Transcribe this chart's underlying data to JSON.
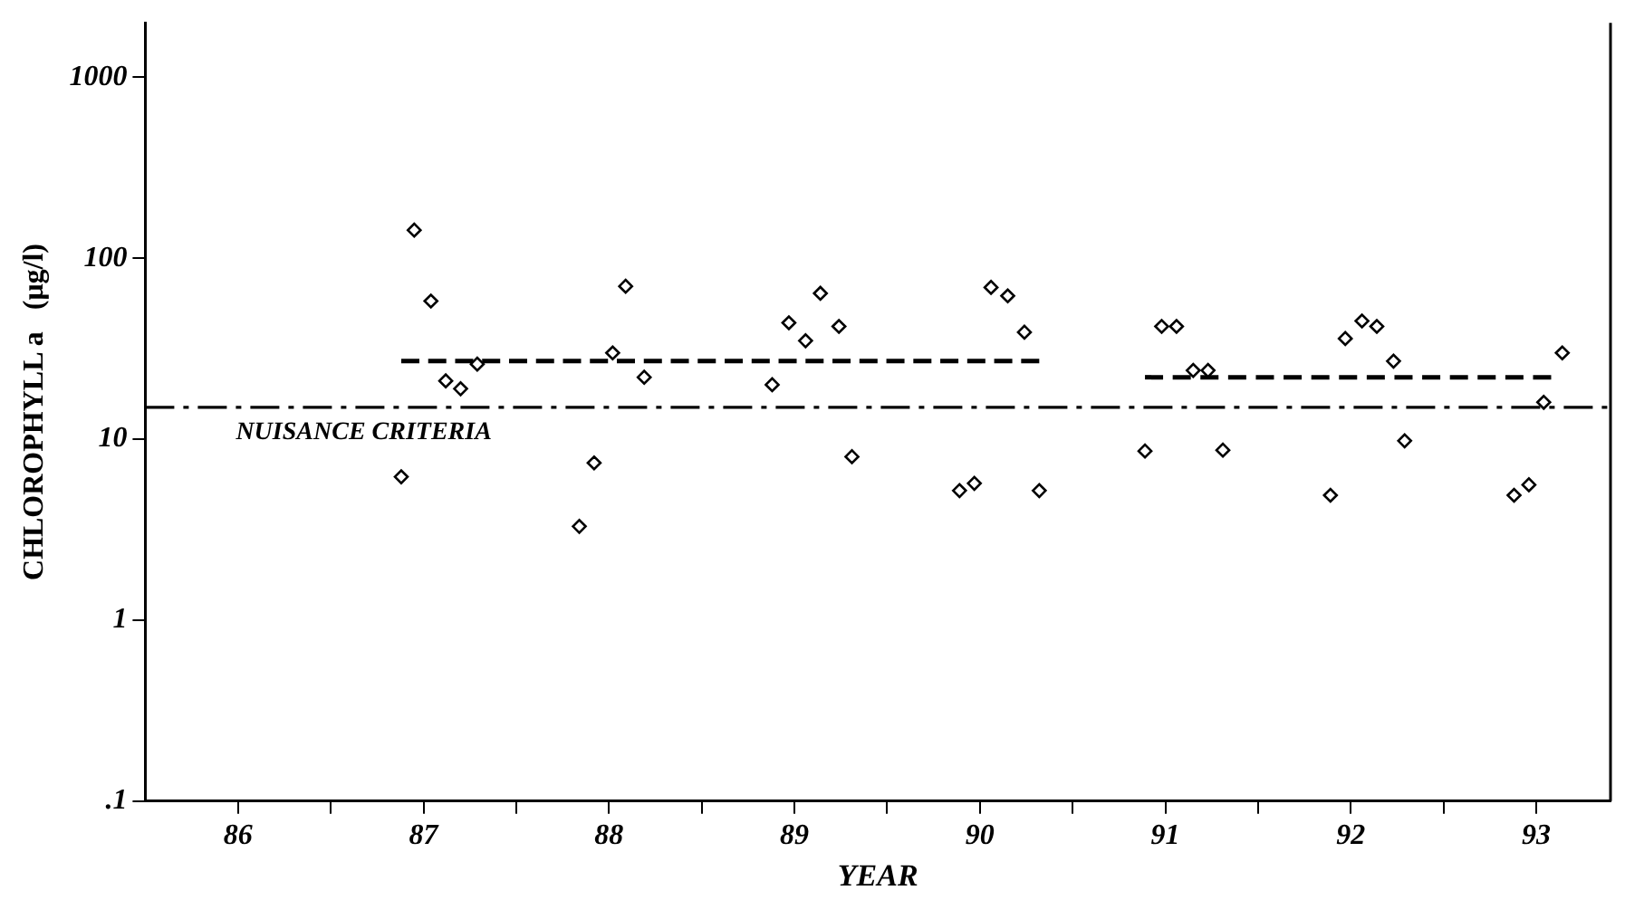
{
  "chart_data": {
    "type": "scatter",
    "xlabel": "YEAR",
    "ylabel": "CHLOROPHYLL a   (μg/l)",
    "log": "y",
    "grid": false,
    "legend": false,
    "marker": "diamond",
    "xlim": [
      85.5,
      93.4
    ],
    "ylim": [
      0.1,
      2000
    ],
    "xticks": [
      86,
      {
        "value": 86.5,
        "label": null
      },
      87,
      {
        "value": 87.5,
        "label": null
      },
      88,
      {
        "value": 88.5,
        "label": null
      },
      89,
      {
        "value": 89.5,
        "label": null
      },
      90,
      {
        "value": 90.5,
        "label": null
      },
      91,
      {
        "value": 91.5,
        "label": null
      },
      92,
      {
        "value": 92.5,
        "label": null
      },
      93
    ],
    "yticks": [
      {
        "value": 0.1,
        "label": ".1"
      },
      1,
      10,
      100,
      1000
    ],
    "series": [
      {
        "color": "#000000",
        "x": [
          86.88,
          86.95,
          87.04,
          87.12,
          87.2,
          87.29,
          87.84,
          87.92,
          88.02,
          88.09,
          88.19,
          88.88,
          88.97,
          89.06,
          89.14,
          89.24,
          89.31,
          89.89,
          89.97,
          90.06,
          90.15,
          90.24,
          90.32,
          90.89,
          90.98,
          91.06,
          91.15,
          91.23,
          91.31,
          91.89,
          91.97,
          92.06,
          92.14,
          92.23,
          92.29,
          92.88,
          92.96,
          93.04,
          93.14
        ],
        "values": [
          6.2,
          143,
          58,
          21,
          19,
          26,
          3.3,
          7.4,
          30,
          70,
          22,
          20,
          44,
          35,
          64,
          42,
          8,
          5.2,
          5.7,
          69,
          62,
          39,
          5.2,
          8.6,
          42,
          42,
          24,
          24,
          8.7,
          4.9,
          36,
          45,
          42,
          27,
          9.8,
          4.9,
          5.6,
          16,
          30
        ]
      },
      {
        "type": "line",
        "marker": "none",
        "line_style": "dashed",
        "color": "#000000",
        "x": [
          86.88,
          90.32
        ],
        "values": [
          27,
          27
        ]
      },
      {
        "type": "line",
        "marker": "none",
        "line_style": "dashed",
        "color": "#000000",
        "x": [
          90.89,
          93.08
        ],
        "values": [
          22,
          22
        ]
      }
    ],
    "ref_lines": [
      {
        "axis": "y",
        "value": 15,
        "label": "NUISANCE CRITERIA",
        "line_style": "dashed",
        "color": "#000000"
      }
    ]
  }
}
